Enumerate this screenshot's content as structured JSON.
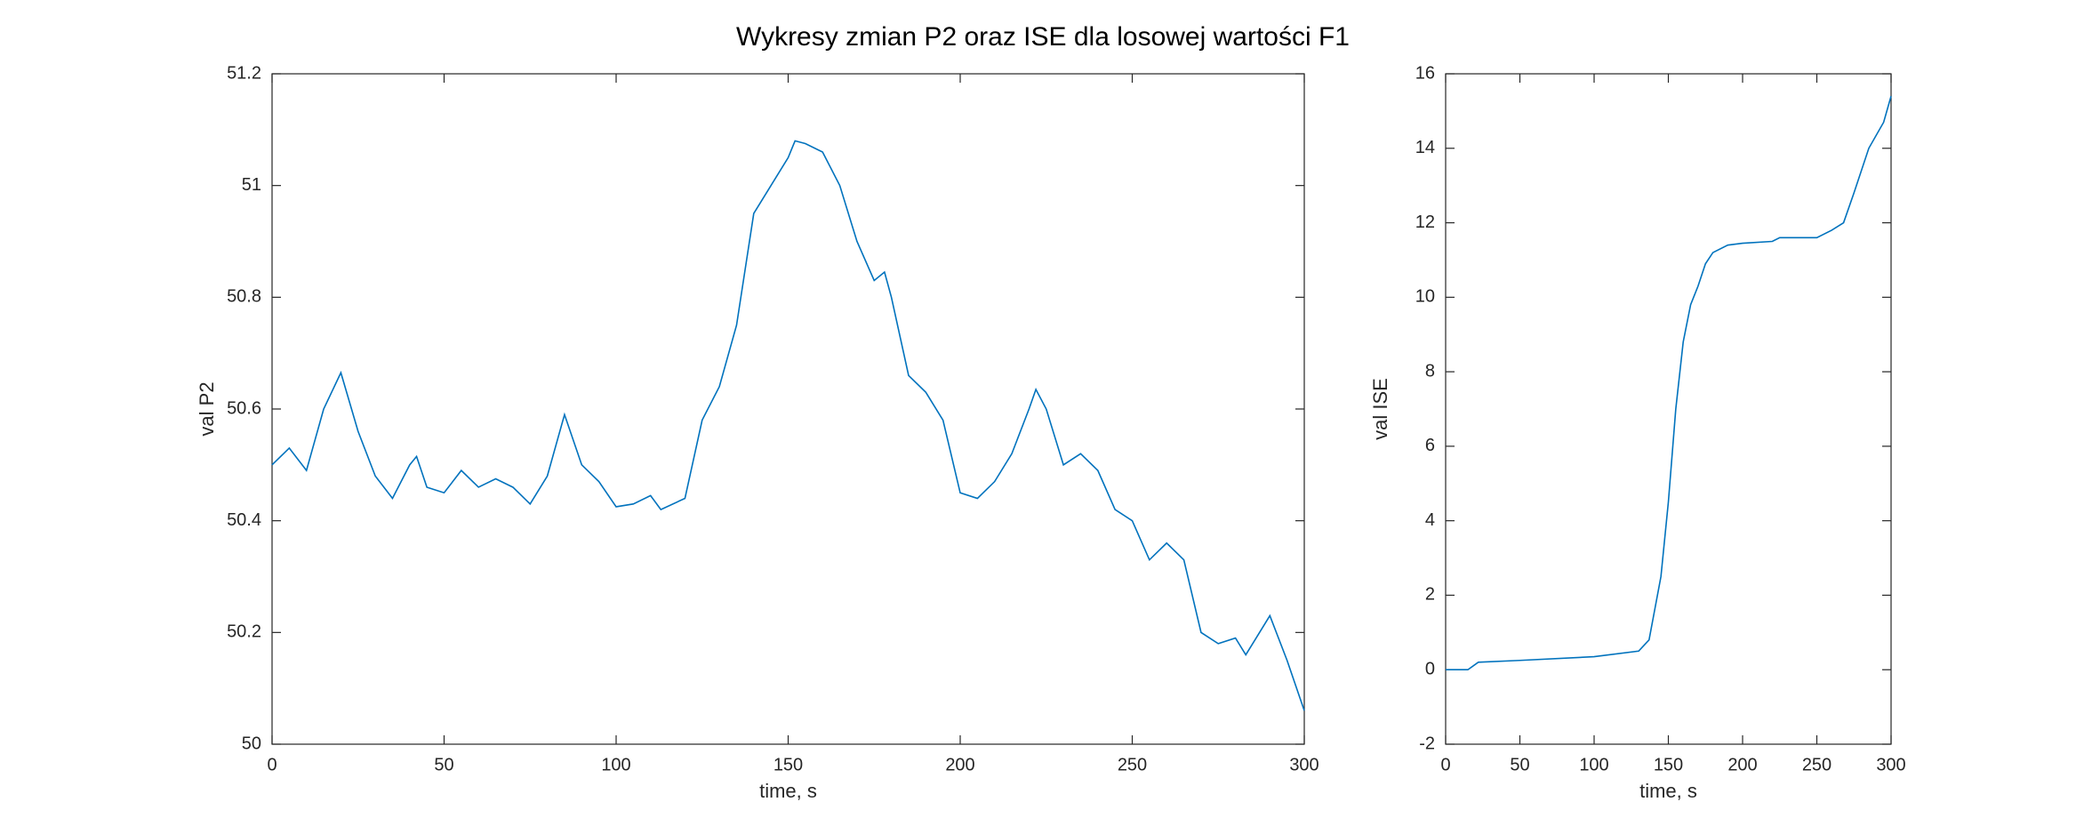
{
  "title": "Wykresy zmian P2 oraz ISE dla losowej wartości F1",
  "chart_data": [
    {
      "type": "line",
      "xlabel": "time, s",
      "ylabel": "val P2",
      "xlim": [
        0,
        300
      ],
      "xticks": [
        0,
        50,
        100,
        150,
        200,
        250,
        300
      ],
      "ylim": [
        50,
        51.2
      ],
      "yticks": [
        50,
        50.2,
        50.4,
        50.6,
        50.8,
        51,
        51.2
      ],
      "x": [
        0,
        5,
        10,
        15,
        20,
        25,
        30,
        35,
        40,
        42,
        45,
        50,
        55,
        60,
        65,
        70,
        75,
        80,
        85,
        90,
        95,
        100,
        105,
        110,
        113,
        120,
        125,
        130,
        135,
        140,
        145,
        150,
        152,
        155,
        160,
        165,
        170,
        175,
        178,
        180,
        185,
        190,
        195,
        200,
        205,
        210,
        215,
        220,
        222,
        225,
        230,
        235,
        240,
        245,
        250,
        255,
        260,
        265,
        270,
        275,
        280,
        283,
        285,
        290,
        295,
        300
      ],
      "series": [
        {
          "color": "#0072bd",
          "values": [
            50.5,
            50.53,
            50.49,
            50.6,
            50.665,
            50.56,
            50.48,
            50.44,
            50.5,
            50.515,
            50.46,
            50.45,
            50.49,
            50.46,
            50.475,
            50.46,
            50.43,
            50.48,
            50.59,
            50.5,
            50.47,
            50.425,
            50.43,
            50.445,
            50.42,
            50.44,
            50.58,
            50.64,
            50.75,
            50.95,
            51.0,
            51.05,
            51.08,
            51.075,
            51.06,
            51.0,
            50.9,
            50.83,
            50.845,
            50.8,
            50.66,
            50.63,
            50.58,
            50.45,
            50.44,
            50.47,
            50.52,
            50.6,
            50.635,
            50.6,
            50.5,
            50.52,
            50.49,
            50.42,
            50.4,
            50.33,
            50.36,
            50.33,
            50.2,
            50.18,
            50.19,
            50.16,
            50.18,
            50.23,
            50.15,
            50.06
          ]
        }
      ]
    },
    {
      "type": "line",
      "xlabel": "time, s",
      "ylabel": "val ISE",
      "xlim": [
        0,
        300
      ],
      "xticks": [
        0,
        50,
        100,
        150,
        200,
        250,
        300
      ],
      "ylim": [
        -2,
        16
      ],
      "yticks": [
        -2,
        0,
        2,
        4,
        6,
        8,
        10,
        12,
        14,
        16
      ],
      "x": [
        0,
        15,
        22,
        50,
        100,
        130,
        137,
        145,
        150,
        155,
        160,
        165,
        170,
        175,
        180,
        190,
        200,
        220,
        225,
        250,
        260,
        268,
        275,
        285,
        295,
        300
      ],
      "series": [
        {
          "color": "#0072bd",
          "values": [
            0,
            0,
            0.2,
            0.25,
            0.35,
            0.5,
            0.8,
            2.5,
            4.5,
            7.0,
            8.8,
            9.8,
            10.3,
            10.9,
            11.2,
            11.4,
            11.45,
            11.5,
            11.6,
            11.6,
            11.8,
            12.0,
            12.8,
            14.0,
            14.7,
            15.4
          ]
        }
      ]
    }
  ]
}
